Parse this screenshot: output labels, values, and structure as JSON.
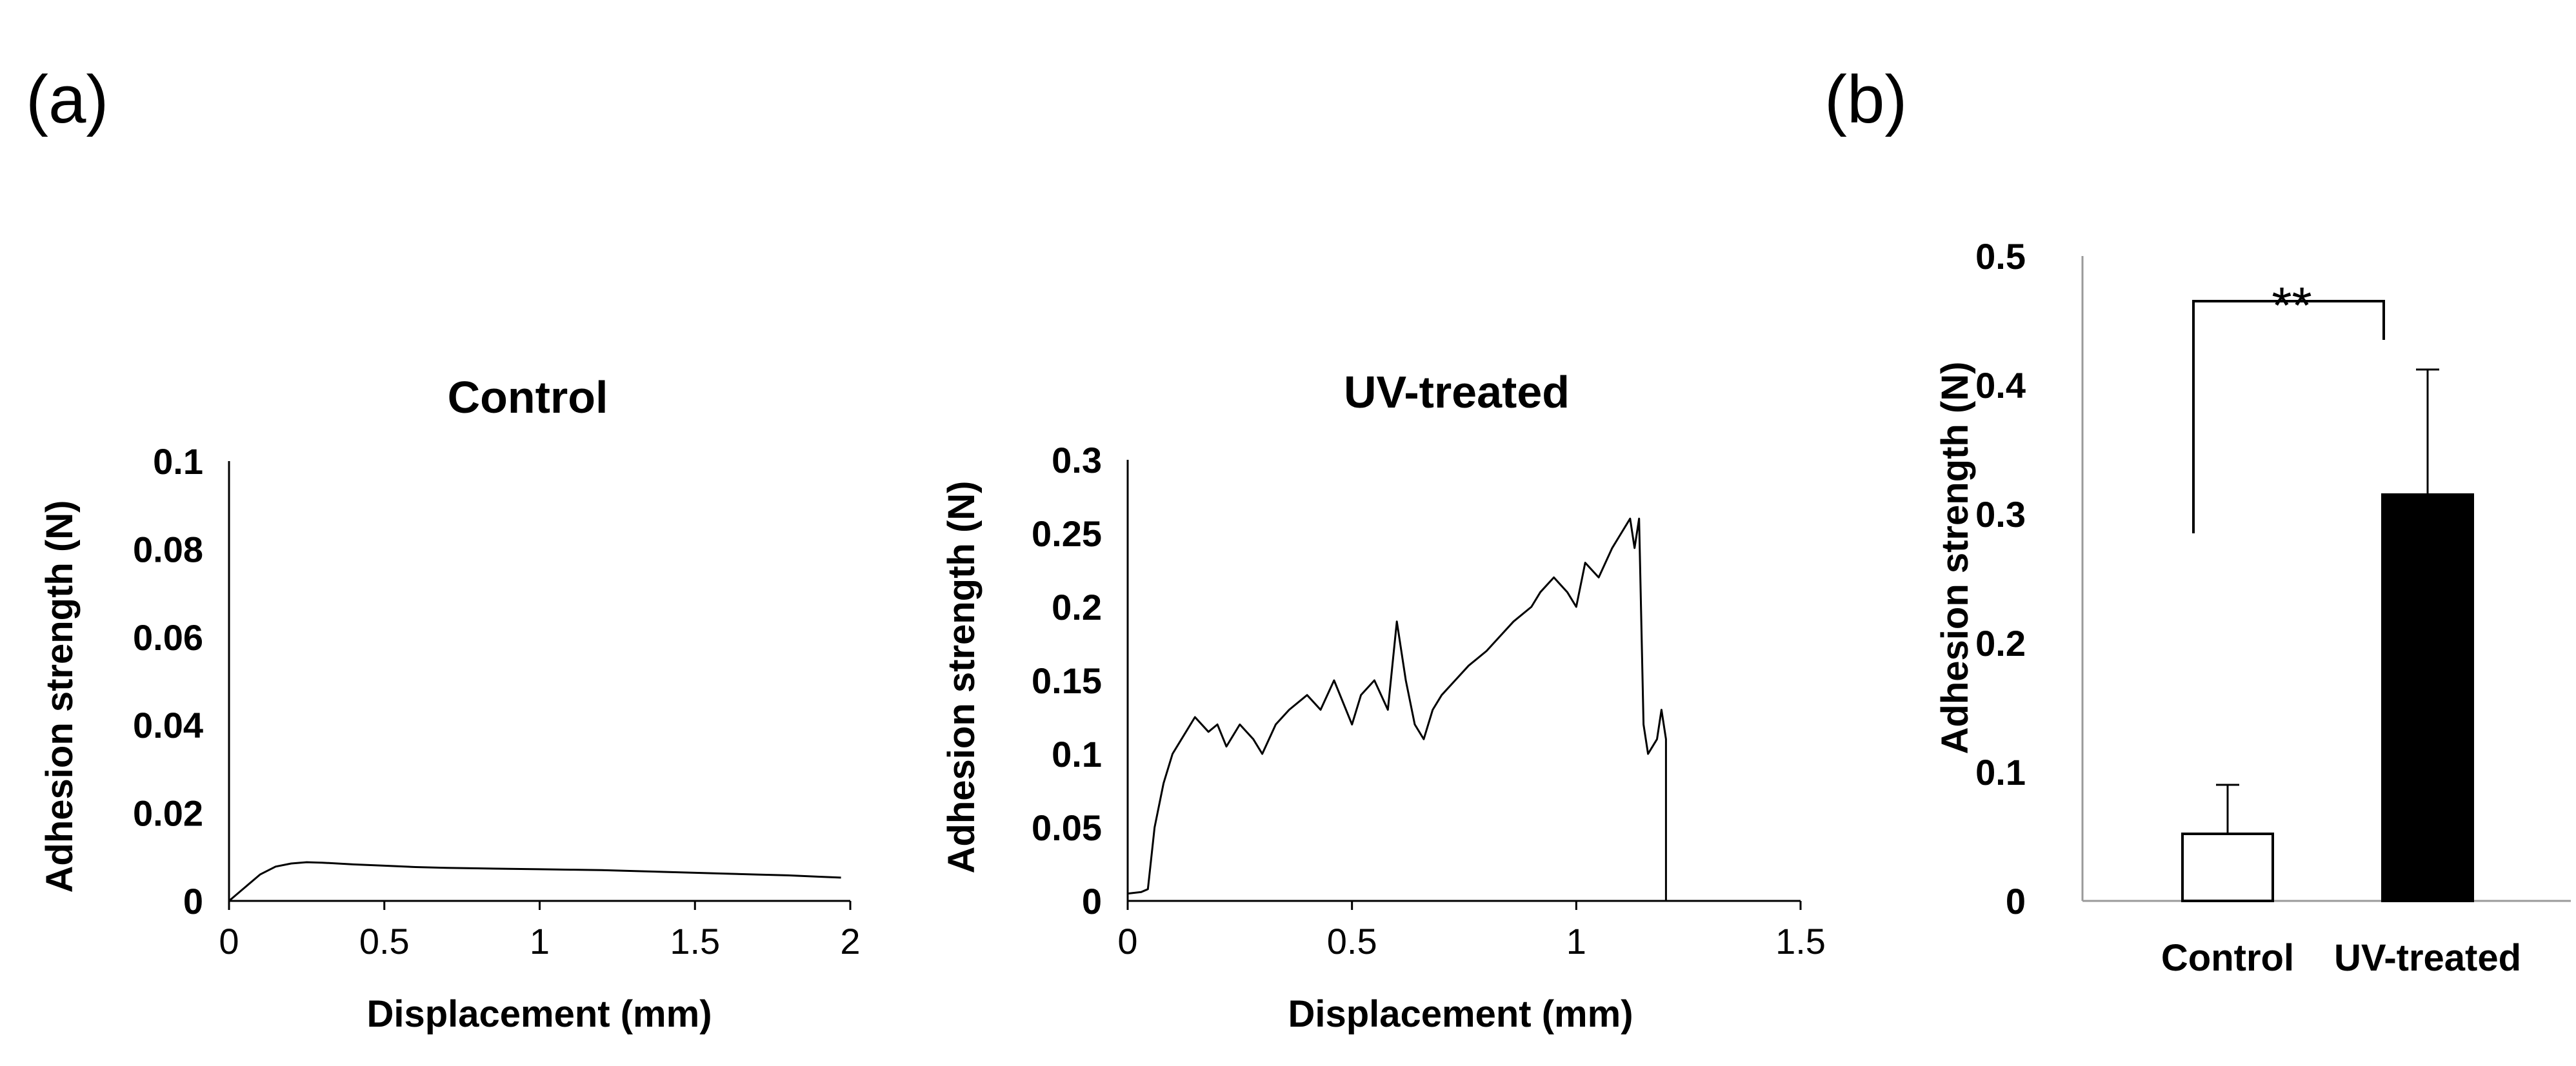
{
  "panel_labels": {
    "a": "(a)",
    "b": "(b)"
  },
  "chart_data": [
    {
      "type": "line",
      "title": "Control",
      "xlabel": "Displacement (mm)",
      "ylabel": "Adhesion strength (N)",
      "xlim": [
        0,
        2
      ],
      "ylim": [
        0,
        0.1
      ],
      "xticks": [
        "0",
        "0.5",
        "1",
        "1.5",
        "2"
      ],
      "yticks": [
        "0",
        "0.02",
        "0.04",
        "0.06",
        "0.08",
        "0.1"
      ],
      "series": [
        {
          "x": [
            0,
            0.05,
            0.1,
            0.15,
            0.2,
            0.25,
            0.3,
            0.4,
            0.5,
            0.6,
            0.7,
            0.8,
            0.9,
            1.0,
            1.1,
            1.2,
            1.3,
            1.4,
            1.5,
            1.6,
            1.7,
            1.8,
            1.9,
            1.97
          ],
          "y": [
            0,
            0.003,
            0.006,
            0.0078,
            0.0085,
            0.0088,
            0.0087,
            0.0083,
            0.008,
            0.0077,
            0.0075,
            0.0074,
            0.0073,
            0.0072,
            0.0071,
            0.007,
            0.0068,
            0.0066,
            0.0064,
            0.0062,
            0.006,
            0.0058,
            0.0055,
            0.0053
          ]
        }
      ]
    },
    {
      "type": "line",
      "title": "UV-treated",
      "xlabel": "Displacement (mm)",
      "ylabel": "Adhesion strength (N)",
      "xlim": [
        0,
        1.5
      ],
      "ylim": [
        0,
        0.3
      ],
      "xticks": [
        "0",
        "0.5",
        "1",
        "1.5"
      ],
      "yticks": [
        "0",
        "0.05",
        "0.1",
        "0.15",
        "0.2",
        "0.25",
        "0.3"
      ],
      "series": [
        {
          "x": [
            0,
            0.03,
            0.045,
            0.06,
            0.08,
            0.1,
            0.12,
            0.15,
            0.18,
            0.2,
            0.22,
            0.25,
            0.28,
            0.3,
            0.33,
            0.36,
            0.4,
            0.43,
            0.46,
            0.5,
            0.52,
            0.55,
            0.58,
            0.6,
            0.62,
            0.64,
            0.66,
            0.68,
            0.7,
            0.73,
            0.76,
            0.8,
            0.83,
            0.86,
            0.9,
            0.92,
            0.95,
            0.98,
            1.0,
            1.02,
            1.05,
            1.08,
            1.1,
            1.12,
            1.13,
            1.14,
            1.15,
            1.16,
            1.18,
            1.19,
            1.2,
            1.2
          ],
          "y": [
            0.005,
            0.006,
            0.008,
            0.05,
            0.08,
            0.1,
            0.11,
            0.125,
            0.115,
            0.12,
            0.105,
            0.12,
            0.11,
            0.1,
            0.12,
            0.13,
            0.14,
            0.13,
            0.15,
            0.12,
            0.14,
            0.15,
            0.13,
            0.19,
            0.15,
            0.12,
            0.11,
            0.13,
            0.14,
            0.15,
            0.16,
            0.17,
            0.18,
            0.19,
            0.2,
            0.21,
            0.22,
            0.21,
            0.2,
            0.23,
            0.22,
            0.24,
            0.25,
            0.26,
            0.24,
            0.26,
            0.12,
            0.1,
            0.11,
            0.13,
            0.11,
            0
          ]
        }
      ]
    },
    {
      "type": "bar",
      "categories": [
        "Control",
        "UV-treated"
      ],
      "values": [
        0.052,
        0.315
      ],
      "errors": [
        0.038,
        0.097
      ],
      "bar_colors": [
        "#ffffff",
        "#000000"
      ],
      "ylabel": "Adhesion strength (N)",
      "ylim": [
        0,
        0.5
      ],
      "yticks": [
        "0",
        "0.1",
        "0.2",
        "0.3",
        "0.4",
        "0.5"
      ],
      "annotation": {
        "text": "**",
        "between": [
          "Control",
          "UV-treated"
        ],
        "y": 0.465
      }
    }
  ]
}
